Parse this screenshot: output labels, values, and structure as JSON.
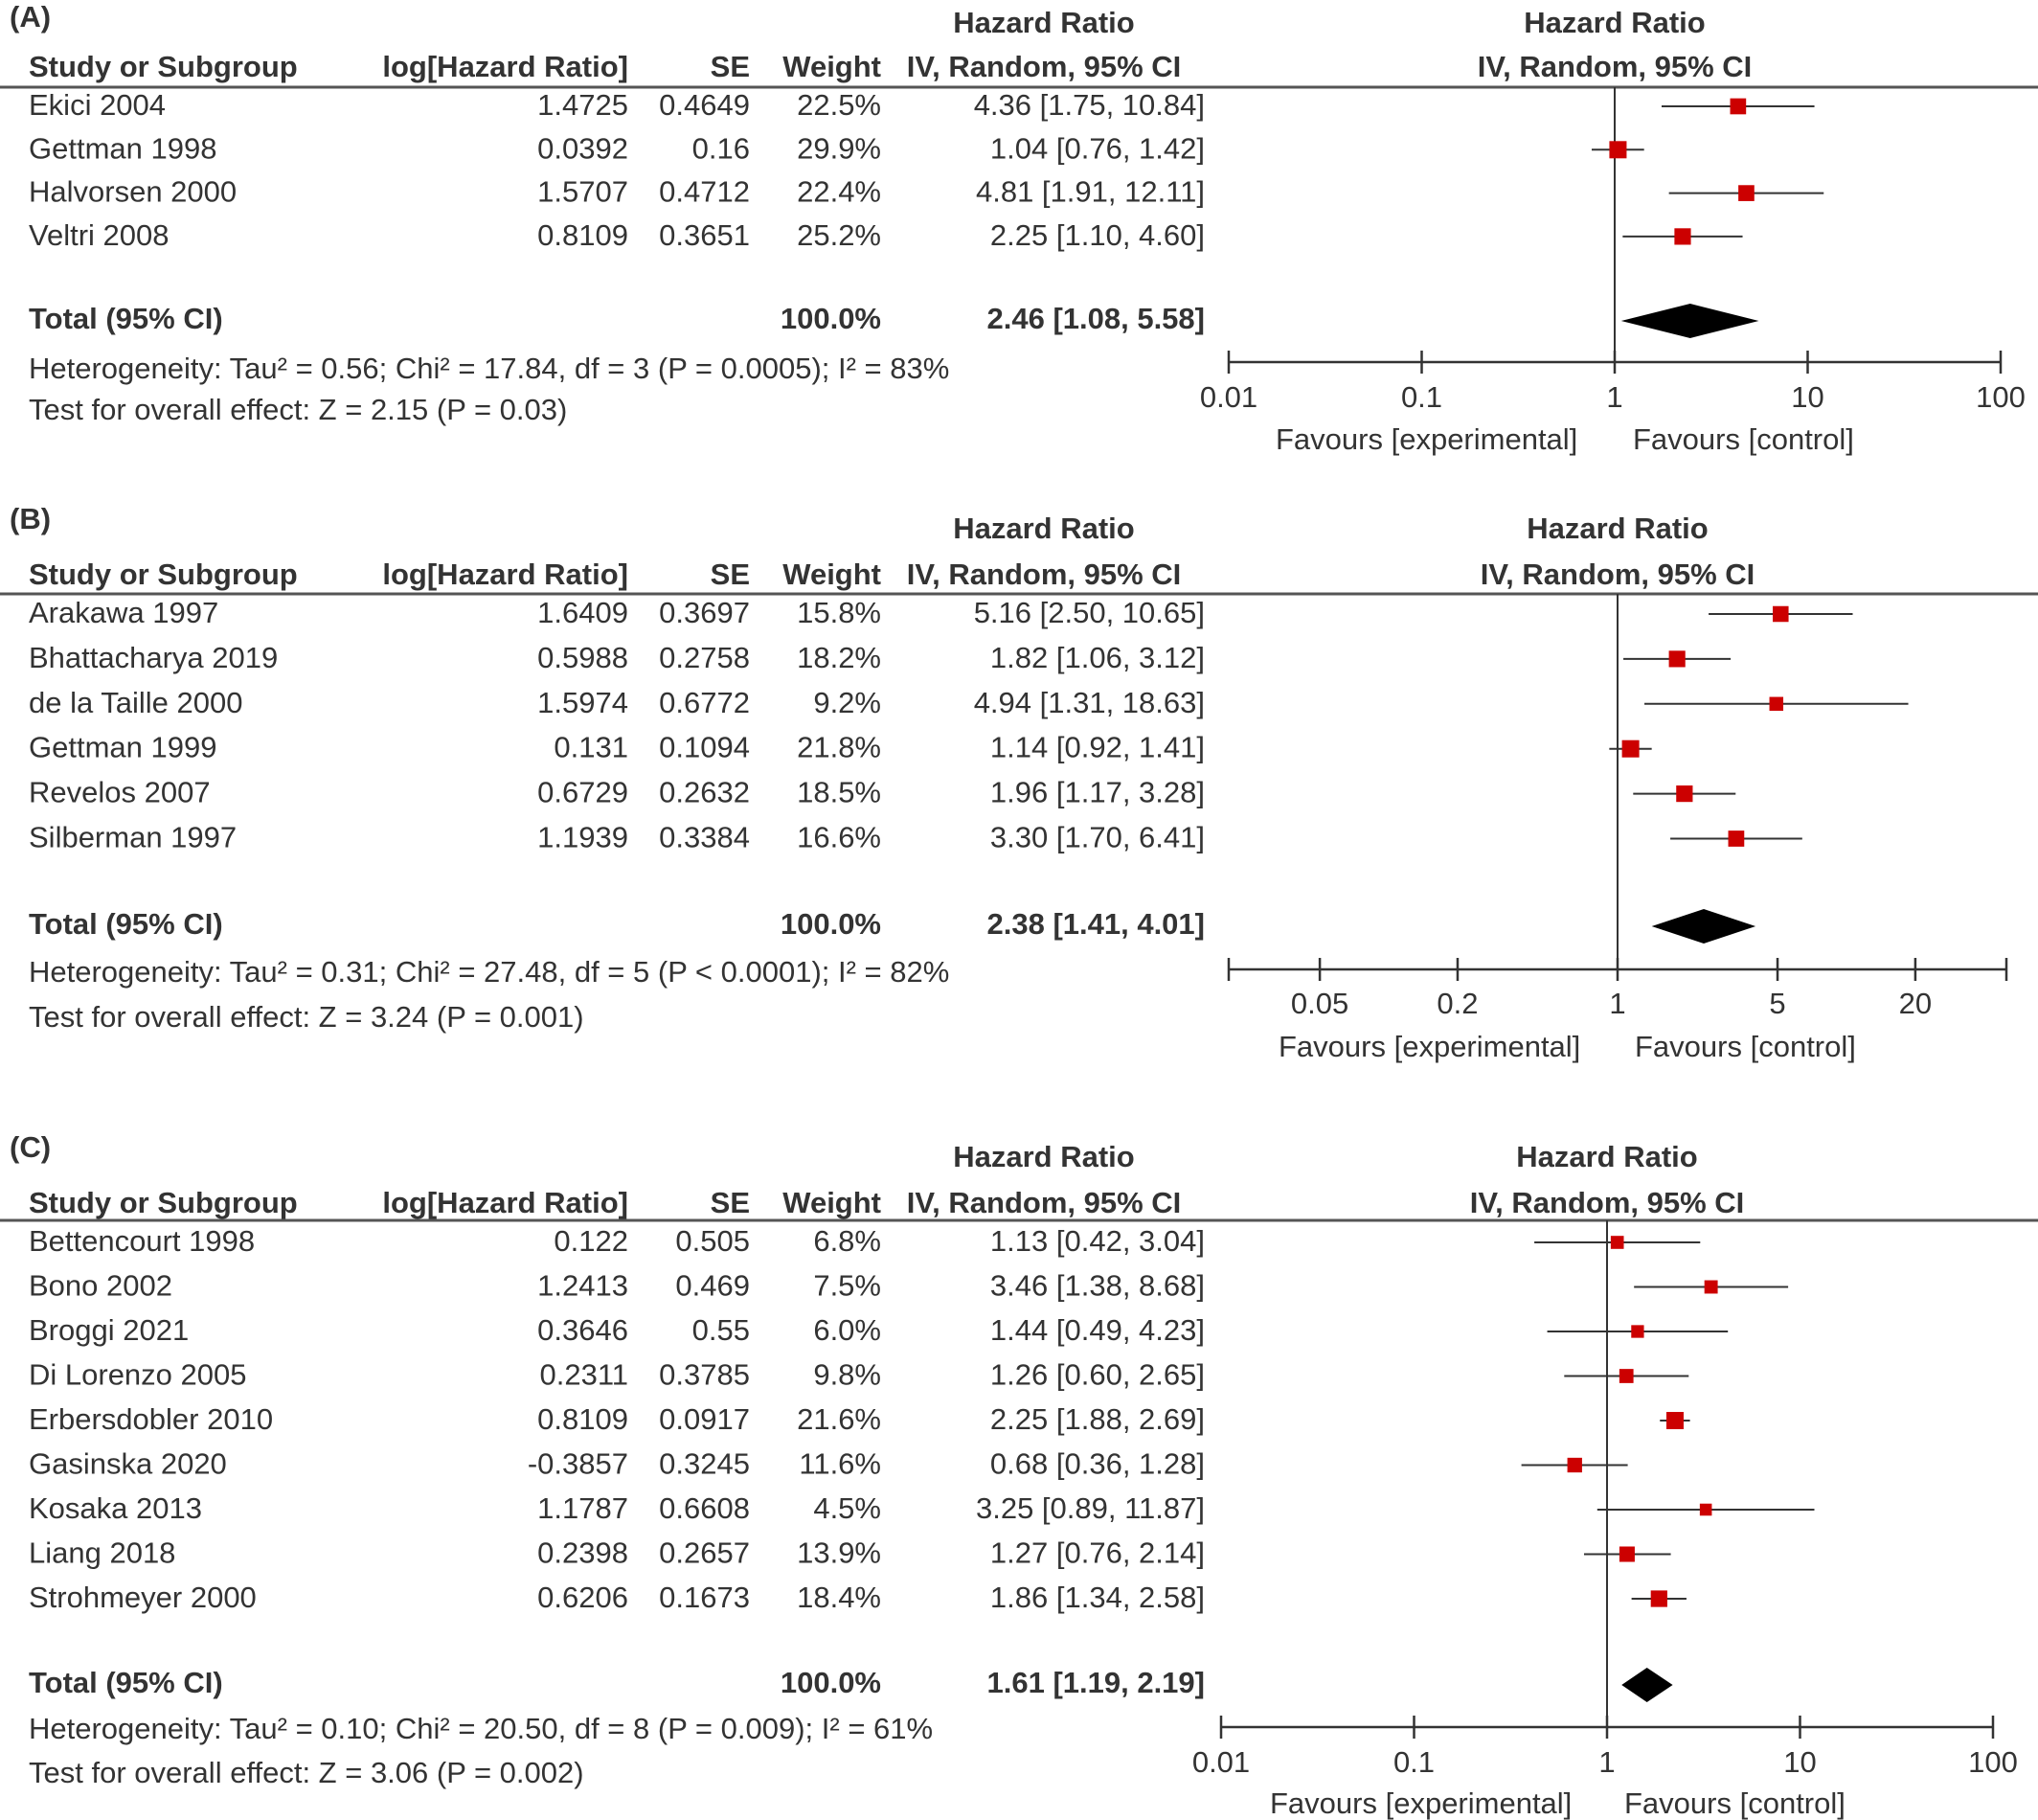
{
  "columns": {
    "study": "Study or Subgroup",
    "log_hr": "log[Hazard Ratio]",
    "se": "SE",
    "weight": "Weight",
    "effect_title": "Hazard Ratio",
    "effect_method": "IV, Random, 95% CI"
  },
  "colors": {
    "point": "#cc0000",
    "diamond": "#000000",
    "ci_line": "#333333",
    "header_rule": "#555555",
    "text": "#333333"
  },
  "chart_data": [
    {
      "type": "forest",
      "panel": "(A)",
      "scale": "log",
      "xlim": [
        0.01,
        100
      ],
      "x_ticks": [
        0.01,
        0.1,
        1,
        10,
        100
      ],
      "x_tick_labels": [
        "0.01",
        "0.1",
        "1",
        "10",
        "100"
      ],
      "favours_left": "Favours [experimental]",
      "favours_right": "Favours [control]",
      "studies": [
        {
          "name": "Ekici 2004",
          "log_hr": "1.4725",
          "se": "0.4649",
          "weight": "22.5%",
          "ci_text": "4.36 [1.75, 10.84]",
          "hr": 4.36,
          "lo": 1.75,
          "hi": 10.84
        },
        {
          "name": "Gettman 1998",
          "log_hr": "0.0392",
          "se": "0.16",
          "weight": "29.9%",
          "ci_text": "1.04 [0.76, 1.42]",
          "hr": 1.04,
          "lo": 0.76,
          "hi": 1.42
        },
        {
          "name": "Halvorsen 2000",
          "log_hr": "1.5707",
          "se": "0.4712",
          "weight": "22.4%",
          "ci_text": "4.81 [1.91, 12.11]",
          "hr": 4.81,
          "lo": 1.91,
          "hi": 12.11
        },
        {
          "name": "Veltri 2008",
          "log_hr": "0.8109",
          "se": "0.3651",
          "weight": "25.2%",
          "ci_text": "2.25 [1.10, 4.60]",
          "hr": 2.25,
          "lo": 1.1,
          "hi": 4.6
        }
      ],
      "total": {
        "label": "Total (95% CI)",
        "weight": "100.0%",
        "ci_text": "2.46 [1.08, 5.58]",
        "hr": 2.46,
        "lo": 1.08,
        "hi": 5.58
      },
      "heterogeneity": "Heterogeneity: Tau² = 0.56; Chi² = 17.84, df = 3 (P = 0.0005); I² = 83%",
      "overall": "Test for overall effect: Z = 2.15 (P = 0.03)"
    },
    {
      "type": "forest",
      "panel": "(B)",
      "scale": "log",
      "xlim": [
        0.02,
        50
      ],
      "x_ticks": [
        0.05,
        0.2,
        1,
        5,
        20
      ],
      "x_tick_labels": [
        "0.05",
        "0.2",
        "1",
        "5",
        "20"
      ],
      "favours_left": "Favours [experimental]",
      "favours_right": "Favours [control]",
      "studies": [
        {
          "name": "Arakawa 1997",
          "log_hr": "1.6409",
          "se": "0.3697",
          "weight": "15.8%",
          "ci_text": "5.16 [2.50, 10.65]",
          "hr": 5.16,
          "lo": 2.5,
          "hi": 10.65
        },
        {
          "name": "Bhattacharya 2019",
          "log_hr": "0.5988",
          "se": "0.2758",
          "weight": "18.2%",
          "ci_text": "1.82 [1.06, 3.12]",
          "hr": 1.82,
          "lo": 1.06,
          "hi": 3.12
        },
        {
          "name": "de la Taille 2000",
          "log_hr": "1.5974",
          "se": "0.6772",
          "weight": "9.2%",
          "ci_text": "4.94 [1.31, 18.63]",
          "hr": 4.94,
          "lo": 1.31,
          "hi": 18.63
        },
        {
          "name": "Gettman 1999",
          "log_hr": "0.131",
          "se": "0.1094",
          "weight": "21.8%",
          "ci_text": "1.14 [0.92, 1.41]",
          "hr": 1.14,
          "lo": 0.92,
          "hi": 1.41
        },
        {
          "name": "Revelos 2007",
          "log_hr": "0.6729",
          "se": "0.2632",
          "weight": "18.5%",
          "ci_text": "1.96 [1.17, 3.28]",
          "hr": 1.96,
          "lo": 1.17,
          "hi": 3.28
        },
        {
          "name": "Silberman 1997",
          "log_hr": "1.1939",
          "se": "0.3384",
          "weight": "16.6%",
          "ci_text": "3.30 [1.70, 6.41]",
          "hr": 3.3,
          "lo": 1.7,
          "hi": 6.41
        }
      ],
      "total": {
        "label": "Total (95% CI)",
        "weight": "100.0%",
        "ci_text": "2.38 [1.41, 4.01]",
        "hr": 2.38,
        "lo": 1.41,
        "hi": 4.01
      },
      "heterogeneity": "Heterogeneity: Tau² = 0.31; Chi² = 27.48, df = 5 (P < 0.0001); I² = 82%",
      "overall": "Test for overall effect: Z = 3.24 (P = 0.001)"
    },
    {
      "type": "forest",
      "panel": "(C)",
      "scale": "log",
      "xlim": [
        0.01,
        100
      ],
      "x_ticks": [
        0.01,
        0.1,
        1,
        10,
        100
      ],
      "x_tick_labels": [
        "0.01",
        "0.1",
        "1",
        "10",
        "100"
      ],
      "favours_left": "Favours [experimental]",
      "favours_right": "Favours [control]",
      "studies": [
        {
          "name": "Bettencourt 1998",
          "log_hr": "0.122",
          "se": "0.505",
          "weight": "6.8%",
          "ci_text": "1.13 [0.42, 3.04]",
          "hr": 1.13,
          "lo": 0.42,
          "hi": 3.04
        },
        {
          "name": "Bono 2002",
          "log_hr": "1.2413",
          "se": "0.469",
          "weight": "7.5%",
          "ci_text": "3.46 [1.38, 8.68]",
          "hr": 3.46,
          "lo": 1.38,
          "hi": 8.68
        },
        {
          "name": "Broggi 2021",
          "log_hr": "0.3646",
          "se": "0.55",
          "weight": "6.0%",
          "ci_text": "1.44 [0.49, 4.23]",
          "hr": 1.44,
          "lo": 0.49,
          "hi": 4.23
        },
        {
          "name": "Di Lorenzo 2005",
          "log_hr": "0.2311",
          "se": "0.3785",
          "weight": "9.8%",
          "ci_text": "1.26 [0.60, 2.65]",
          "hr": 1.26,
          "lo": 0.6,
          "hi": 2.65
        },
        {
          "name": "Erbersdobler 2010",
          "log_hr": "0.8109",
          "se": "0.0917",
          "weight": "21.6%",
          "ci_text": "2.25 [1.88, 2.69]",
          "hr": 2.25,
          "lo": 1.88,
          "hi": 2.69
        },
        {
          "name": "Gasinska 2020",
          "log_hr": "-0.3857",
          "se": "0.3245",
          "weight": "11.6%",
          "ci_text": "0.68 [0.36, 1.28]",
          "hr": 0.68,
          "lo": 0.36,
          "hi": 1.28
        },
        {
          "name": "Kosaka 2013",
          "log_hr": "1.1787",
          "se": "0.6608",
          "weight": "4.5%",
          "ci_text": "3.25 [0.89, 11.87]",
          "hr": 3.25,
          "lo": 0.89,
          "hi": 11.87
        },
        {
          "name": "Liang 2018",
          "log_hr": "0.2398",
          "se": "0.2657",
          "weight": "13.9%",
          "ci_text": "1.27 [0.76, 2.14]",
          "hr": 1.27,
          "lo": 0.76,
          "hi": 2.14
        },
        {
          "name": "Strohmeyer 2000",
          "log_hr": "0.6206",
          "se": "0.1673",
          "weight": "18.4%",
          "ci_text": "1.86 [1.34, 2.58]",
          "hr": 1.86,
          "lo": 1.34,
          "hi": 2.58
        }
      ],
      "total": {
        "label": "Total (95% CI)",
        "weight": "100.0%",
        "ci_text": "1.61 [1.19, 2.19]",
        "hr": 1.61,
        "lo": 1.19,
        "hi": 2.19
      },
      "heterogeneity": "Heterogeneity: Tau² = 0.10; Chi² = 20.50, df = 8 (P = 0.009); I² = 61%",
      "overall": "Test for overall effect: Z = 3.06 (P = 0.002)"
    }
  ]
}
